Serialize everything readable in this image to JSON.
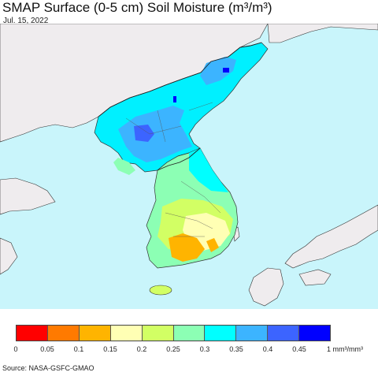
{
  "title": "SMAP Surface (0-5 cm) Soil Moisture (m³/m³)",
  "date": "Jul. 15, 2022",
  "source": "Source: NASA-GSFC-GMAO",
  "colors": {
    "ocean": "#c9f5fb",
    "land_nodata": "#efecee",
    "border": "#333333"
  },
  "legend": {
    "swatches": [
      "#ff0000",
      "#ff7a00",
      "#ffb400",
      "#ffffb4",
      "#d2ff64",
      "#8cffb4",
      "#00ffff",
      "#3cb4ff",
      "#3c64ff",
      "#0000ff"
    ],
    "ticks": [
      "0",
      "0.05",
      "0.1",
      "0.15",
      "0.2",
      "0.25",
      "0.3",
      "0.35",
      "0.4",
      "0.45",
      "1 mm³/mm³"
    ]
  }
}
